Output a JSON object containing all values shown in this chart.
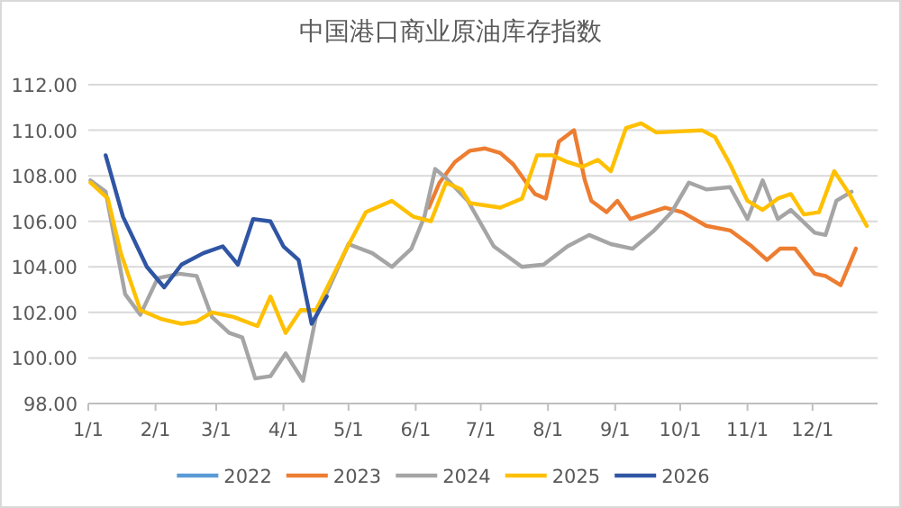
{
  "chart_data": {
    "type": "line",
    "title": "中国港口商业原油库存指数",
    "xlim": [
      "--01-01",
      "--12-31"
    ],
    "xticks": [
      {
        "value": "--01-01",
        "label": "1/1"
      },
      {
        "value": "--02-01",
        "label": "2/1"
      },
      {
        "value": "--03-01",
        "label": "3/1"
      },
      {
        "value": "--04-01",
        "label": "4/1"
      },
      {
        "value": "--05-01",
        "label": "5/1"
      },
      {
        "value": "--06-01",
        "label": "6/1"
      },
      {
        "value": "--07-01",
        "label": "7/1"
      },
      {
        "value": "--08-01",
        "label": "8/1"
      },
      {
        "value": "--09-01",
        "label": "9/1"
      },
      {
        "value": "--10-01",
        "label": "10/1"
      },
      {
        "value": "--11-01",
        "label": "11/1"
      },
      {
        "value": "--12-01",
        "label": "12/1"
      }
    ],
    "ylim": [
      98,
      112
    ],
    "yticks": [
      {
        "value": 98,
        "label": "98.00"
      },
      {
        "value": 100,
        "label": "100.00"
      },
      {
        "value": 102,
        "label": "102.00"
      },
      {
        "value": 104,
        "label": "104.00"
      },
      {
        "value": 106,
        "label": "106.00"
      },
      {
        "value": 108,
        "label": "108.00"
      },
      {
        "value": 110,
        "label": "110.00"
      },
      {
        "value": 112,
        "label": "112.00"
      }
    ],
    "grid": "y",
    "legend": "bottom",
    "line_style": "solid",
    "marker": "none",
    "series": [
      {
        "name": "2022",
        "color": "#5b9bd5"
      },
      {
        "name": "2023",
        "color": "#ed7d31",
        "x": [
          "--06-07",
          "--06-12",
          "--06-19",
          "--06-26",
          "--07-03",
          "--07-10",
          "--07-16",
          "--07-22",
          "--07-26",
          "--07-31",
          "--08-06",
          "--08-13",
          "--08-18",
          "--08-21",
          "--08-28",
          "--09-02",
          "--09-08",
          "--09-24",
          "--10-02",
          "--10-13",
          "--10-24",
          "--11-03",
          "--11-10",
          "--11-16",
          "--11-23",
          "--12-02",
          "--12-07",
          "--12-14",
          "--12-21"
        ],
        "values": [
          106.6,
          107.7,
          108.6,
          109.1,
          109.2,
          109.0,
          108.5,
          107.7,
          107.2,
          107.0,
          109.5,
          110.0,
          107.8,
          106.9,
          106.4,
          106.9,
          106.1,
          106.6,
          106.4,
          105.8,
          105.6,
          104.9,
          104.3,
          104.8,
          104.8,
          103.7,
          103.6,
          103.2,
          104.8
        ]
      },
      {
        "name": "2024",
        "color": "#a5a5a5",
        "x": [
          "--01-02",
          "--01-09",
          "--01-18",
          "--01-25",
          "--02-02",
          "--02-12",
          "--02-20",
          "--02-27",
          "--03-07",
          "--03-13",
          "--03-19",
          "--03-26",
          "--04-02",
          "--04-10",
          "--04-16",
          "--05-01",
          "--05-12",
          "--05-21",
          "--05-30",
          "--06-05",
          "--06-10",
          "--06-15",
          "--06-25",
          "--07-07",
          "--07-20",
          "--07-30",
          "--08-10",
          "--08-20",
          "--08-30",
          "--09-09",
          "--09-19",
          "--09-27",
          "--10-05",
          "--10-13",
          "--10-24",
          "--11-01",
          "--11-08",
          "--11-15",
          "--11-21",
          "--12-02",
          "--12-07",
          "--12-12",
          "--12-19"
        ],
        "values": [
          107.8,
          107.3,
          102.8,
          101.9,
          103.5,
          103.7,
          103.6,
          101.8,
          101.1,
          100.9,
          99.1,
          99.2,
          100.2,
          99.0,
          101.8,
          105.0,
          104.6,
          104.0,
          104.8,
          106.2,
          108.3,
          107.9,
          106.9,
          104.9,
          104.0,
          104.1,
          104.9,
          105.4,
          105.0,
          104.8,
          105.6,
          106.4,
          107.7,
          107.4,
          107.5,
          106.1,
          107.8,
          106.1,
          106.5,
          105.5,
          105.4,
          106.9,
          107.3
        ]
      },
      {
        "name": "2025",
        "color": "#ffc000",
        "x": [
          "--01-02",
          "--01-10",
          "--01-16",
          "--01-25",
          "--02-04",
          "--02-13",
          "--02-20",
          "--02-27",
          "--03-09",
          "--03-20",
          "--03-26",
          "--04-02",
          "--04-09",
          "--04-16",
          "--04-29",
          "--05-09",
          "--05-21",
          "--05-31",
          "--06-08",
          "--06-15",
          "--06-22",
          "--06-26",
          "--07-10",
          "--07-20",
          "--07-27",
          "--08-03",
          "--08-10",
          "--08-17",
          "--08-24",
          "--08-30",
          "--09-06",
          "--09-13",
          "--09-20",
          "--10-11",
          "--10-17",
          "--10-24",
          "--11-01",
          "--11-08",
          "--11-15",
          "--11-21",
          "--11-27",
          "--12-04",
          "--12-11",
          "--12-18",
          "--12-26"
        ],
        "values": [
          107.7,
          107.0,
          104.6,
          102.1,
          101.7,
          101.5,
          101.6,
          102.0,
          101.8,
          101.4,
          102.7,
          101.1,
          102.1,
          102.1,
          104.6,
          106.4,
          106.9,
          106.2,
          106.0,
          107.7,
          107.4,
          106.8,
          106.6,
          107.0,
          108.9,
          108.9,
          108.6,
          108.4,
          108.7,
          108.2,
          110.1,
          110.3,
          109.9,
          110.0,
          109.7,
          108.5,
          106.9,
          106.5,
          107.0,
          107.2,
          106.3,
          106.4,
          108.2,
          107.2,
          105.8
        ]
      },
      {
        "name": "2026",
        "color": "#2f55a4",
        "x": [
          "--01-09",
          "--01-17",
          "--01-28",
          "--02-05",
          "--02-13",
          "--02-23",
          "--03-04",
          "--03-11",
          "--03-18",
          "--03-26",
          "--04-01",
          "--04-08",
          "--04-14",
          "--04-21"
        ],
        "values": [
          108.9,
          106.2,
          104.0,
          103.1,
          104.1,
          104.6,
          104.9,
          104.1,
          106.1,
          106.0,
          104.9,
          104.3,
          101.5,
          102.7
        ]
      }
    ]
  }
}
